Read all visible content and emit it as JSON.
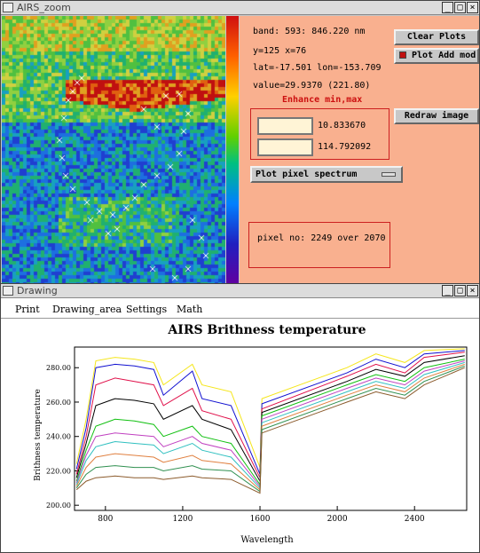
{
  "zoom_window": {
    "title": "AIRS_zoom",
    "info": {
      "band": "band:  593: 846.220 nm",
      "xy": "y=125 x=76",
      "latlon": "lat=-17.501 lon=-153.709",
      "value": "value=29.9370 (221.80)",
      "enhance_label": "Enhance min,max"
    },
    "buttons": {
      "clear_plots": "Clear Plots",
      "plot_add": "Plot Add mod",
      "redraw": "Redraw image",
      "spectrum_select": "Plot pixel spectrum"
    },
    "min_value": "10.833670",
    "max_value": "114.792092",
    "pixel_info": "pixel no: 2249 over 2070"
  },
  "drawing_window": {
    "title": "Drawing",
    "menu": [
      "Print",
      "Drawing_area",
      "Settings",
      "Math"
    ]
  },
  "colors": {
    "panel_bg": "#f9b08f",
    "red_series": "#e0104a",
    "blue_series": "#1010d0",
    "green_series": "#10c010"
  },
  "chart_data": {
    "type": "line",
    "title": "AIRS Brithness temperature",
    "xlabel": "Wavelength",
    "ylabel": "Brithness temperature",
    "xlim": [
      640,
      2670
    ],
    "ylim": [
      197,
      292
    ],
    "x_ticks": [
      "800",
      "1200",
      "1600",
      "2000",
      "2400"
    ],
    "y_ticks": [
      "200.00",
      "220.00",
      "240.00",
      "260.00",
      "280.00"
    ],
    "series": [
      {
        "color": "#f5e61a",
        "values": [
          [
            650,
            224
          ],
          [
            700,
            250
          ],
          [
            750,
            284
          ],
          [
            850,
            286
          ],
          [
            950,
            285
          ],
          [
            1050,
            283
          ],
          [
            1100,
            270
          ],
          [
            1250,
            282
          ],
          [
            1300,
            270
          ],
          [
            1450,
            266
          ],
          [
            1600,
            222
          ],
          [
            1610,
            262
          ],
          [
            2050,
            280
          ],
          [
            2200,
            288
          ],
          [
            2350,
            283
          ],
          [
            2450,
            290
          ],
          [
            2660,
            291
          ]
        ]
      },
      {
        "color": "#1010d0",
        "values": [
          [
            650,
            221
          ],
          [
            700,
            245
          ],
          [
            750,
            280
          ],
          [
            850,
            282
          ],
          [
            950,
            281
          ],
          [
            1050,
            279
          ],
          [
            1100,
            264
          ],
          [
            1250,
            278
          ],
          [
            1300,
            262
          ],
          [
            1450,
            258
          ],
          [
            1600,
            218
          ],
          [
            1610,
            259
          ],
          [
            2050,
            277
          ],
          [
            2200,
            285
          ],
          [
            2350,
            280
          ],
          [
            2450,
            288
          ],
          [
            2660,
            290
          ]
        ]
      },
      {
        "color": "#e0104a",
        "values": [
          [
            650,
            218
          ],
          [
            700,
            240
          ],
          [
            750,
            270
          ],
          [
            850,
            274
          ],
          [
            950,
            272
          ],
          [
            1050,
            270
          ],
          [
            1100,
            258
          ],
          [
            1250,
            268
          ],
          [
            1300,
            255
          ],
          [
            1450,
            250
          ],
          [
            1600,
            216
          ],
          [
            1610,
            256
          ],
          [
            2050,
            275
          ],
          [
            2200,
            282
          ],
          [
            2350,
            277
          ],
          [
            2450,
            286
          ],
          [
            2660,
            289
          ]
        ]
      },
      {
        "color": "#000000",
        "values": [
          [
            650,
            216
          ],
          [
            700,
            236
          ],
          [
            750,
            258
          ],
          [
            850,
            262
          ],
          [
            950,
            261
          ],
          [
            1050,
            259
          ],
          [
            1100,
            250
          ],
          [
            1250,
            258
          ],
          [
            1300,
            250
          ],
          [
            1450,
            244
          ],
          [
            1600,
            214
          ],
          [
            1610,
            254
          ],
          [
            2050,
            272
          ],
          [
            2200,
            279
          ],
          [
            2350,
            275
          ],
          [
            2450,
            283
          ],
          [
            2660,
            287
          ]
        ]
      },
      {
        "color": "#10c010",
        "values": [
          [
            650,
            214
          ],
          [
            700,
            232
          ],
          [
            750,
            246
          ],
          [
            850,
            250
          ],
          [
            950,
            249
          ],
          [
            1050,
            247
          ],
          [
            1100,
            240
          ],
          [
            1250,
            246
          ],
          [
            1300,
            240
          ],
          [
            1450,
            236
          ],
          [
            1600,
            212
          ],
          [
            1610,
            252
          ],
          [
            2050,
            270
          ],
          [
            2200,
            276
          ],
          [
            2350,
            272
          ],
          [
            2450,
            280
          ],
          [
            2660,
            285
          ]
        ]
      },
      {
        "color": "#c040c0",
        "values": [
          [
            650,
            213
          ],
          [
            700,
            229
          ],
          [
            750,
            240
          ],
          [
            850,
            242
          ],
          [
            950,
            241
          ],
          [
            1050,
            240
          ],
          [
            1100,
            234
          ],
          [
            1250,
            240
          ],
          [
            1300,
            236
          ],
          [
            1450,
            232
          ],
          [
            1600,
            211
          ],
          [
            1610,
            250
          ],
          [
            2050,
            268
          ],
          [
            2200,
            274
          ],
          [
            2350,
            270
          ],
          [
            2450,
            278
          ],
          [
            2660,
            284
          ]
        ]
      },
      {
        "color": "#30c0c0",
        "values": [
          [
            650,
            212
          ],
          [
            700,
            226
          ],
          [
            750,
            234
          ],
          [
            850,
            237
          ],
          [
            950,
            236
          ],
          [
            1050,
            235
          ],
          [
            1100,
            230
          ],
          [
            1250,
            236
          ],
          [
            1300,
            232
          ],
          [
            1450,
            228
          ],
          [
            1600,
            210
          ],
          [
            1610,
            248
          ],
          [
            2050,
            266
          ],
          [
            2200,
            272
          ],
          [
            2350,
            268
          ],
          [
            2450,
            276
          ],
          [
            2660,
            283
          ]
        ]
      },
      {
        "color": "#e08040",
        "values": [
          [
            650,
            211
          ],
          [
            700,
            222
          ],
          [
            750,
            228
          ],
          [
            850,
            230
          ],
          [
            950,
            229
          ],
          [
            1050,
            228
          ],
          [
            1100,
            225
          ],
          [
            1250,
            229
          ],
          [
            1300,
            226
          ],
          [
            1450,
            224
          ],
          [
            1600,
            209
          ],
          [
            1610,
            246
          ],
          [
            2050,
            264
          ],
          [
            2200,
            270
          ],
          [
            2350,
            266
          ],
          [
            2450,
            274
          ],
          [
            2660,
            282
          ]
        ]
      },
      {
        "color": "#309050",
        "values": [
          [
            650,
            210
          ],
          [
            700,
            218
          ],
          [
            750,
            222
          ],
          [
            850,
            223
          ],
          [
            950,
            222
          ],
          [
            1050,
            222
          ],
          [
            1100,
            220
          ],
          [
            1250,
            223
          ],
          [
            1300,
            221
          ],
          [
            1450,
            220
          ],
          [
            1600,
            208
          ],
          [
            1610,
            244
          ],
          [
            2050,
            262
          ],
          [
            2200,
            268
          ],
          [
            2350,
            264
          ],
          [
            2450,
            272
          ],
          [
            2660,
            281
          ]
        ]
      },
      {
        "color": "#8b5a2b",
        "values": [
          [
            650,
            209
          ],
          [
            700,
            214
          ],
          [
            750,
            216
          ],
          [
            850,
            217
          ],
          [
            950,
            216
          ],
          [
            1050,
            216
          ],
          [
            1100,
            215
          ],
          [
            1250,
            217
          ],
          [
            1300,
            216
          ],
          [
            1450,
            215
          ],
          [
            1600,
            207
          ],
          [
            1610,
            242
          ],
          [
            2050,
            260
          ],
          [
            2200,
            266
          ],
          [
            2350,
            262
          ],
          [
            2450,
            270
          ],
          [
            2660,
            280
          ]
        ]
      }
    ]
  }
}
